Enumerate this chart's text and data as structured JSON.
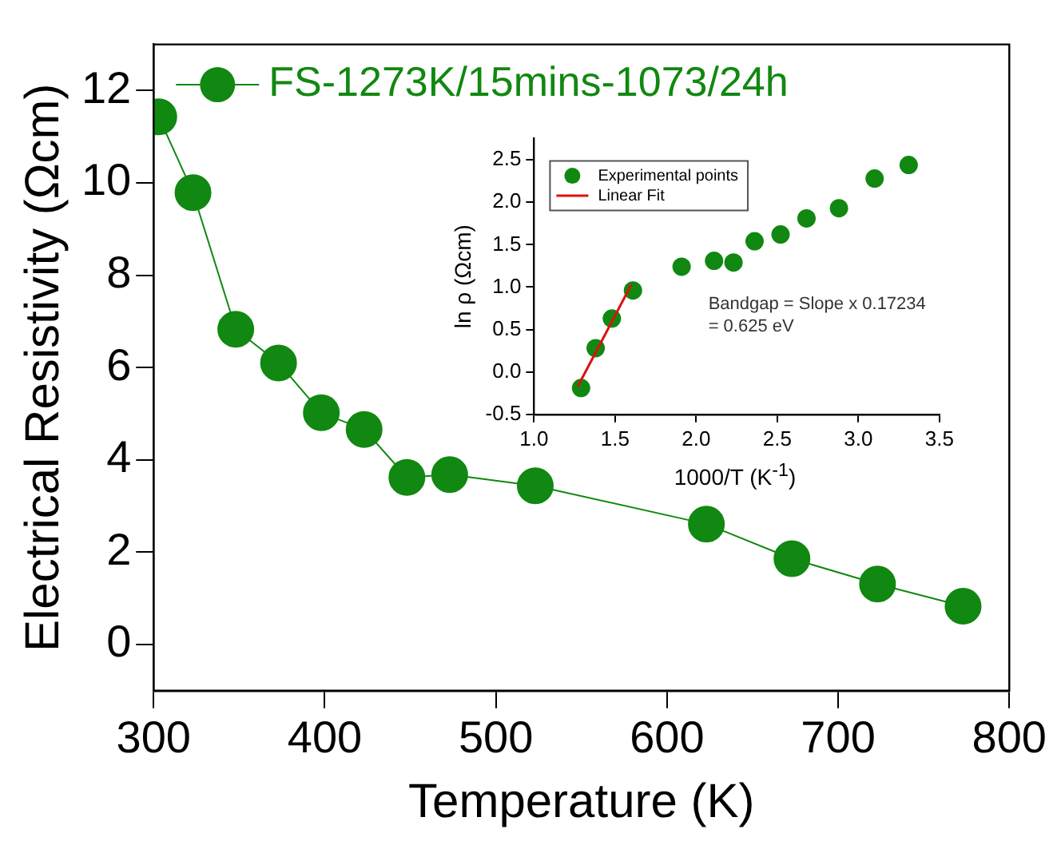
{
  "chart_data": [
    {
      "type": "line",
      "xlabel": "Temperature (K)",
      "ylabel": "Electrical Resistivity (Ωcm)",
      "x": [
        303,
        323,
        348,
        373,
        398,
        423,
        448,
        473,
        523,
        623,
        673,
        723,
        773
      ],
      "series": [
        {
          "name": "FS-1273K/15mins-1073/24h",
          "color": "#118811",
          "values": [
            11.43,
            9.79,
            6.83,
            6.1,
            5.02,
            4.66,
            3.62,
            3.68,
            3.44,
            2.61,
            1.86,
            1.31,
            0.83
          ]
        }
      ],
      "xlim": [
        300,
        800
      ],
      "xticks": [
        300,
        400,
        500,
        600,
        700,
        800
      ],
      "ylim": [
        -1,
        13
      ],
      "yticks": [
        0,
        2,
        4,
        6,
        8,
        10,
        12
      ],
      "marker": "circle",
      "legend": "top left"
    },
    {
      "type": "scatter",
      "xlabel": "1000/T (K$^{-1}$)",
      "ylabel": "ln ρ (Ωcm)",
      "series": [
        {
          "name": "Experimental points",
          "color": "#118811",
          "marker": "circle",
          "x": [
            1.29,
            1.38,
            1.48,
            1.61,
            1.91,
            2.11,
            2.23,
            2.36,
            2.52,
            2.68,
            2.88,
            3.1,
            3.31
          ],
          "values": [
            -0.19,
            0.28,
            0.63,
            0.96,
            1.24,
            1.31,
            1.29,
            1.54,
            1.62,
            1.81,
            1.93,
            2.28,
            2.44
          ]
        },
        {
          "name": "Linear Fit",
          "type": "line",
          "color": "#dd1111",
          "marker": "none",
          "x": [
            1.27,
            1.6
          ],
          "values": [
            -0.17,
            1.03
          ]
        }
      ],
      "xlim": [
        1.0,
        3.5
      ],
      "xticks": [
        {
          "value": 1,
          "label": "1.0"
        },
        1.5,
        {
          "value": 2,
          "label": "2.0"
        },
        2.5,
        {
          "value": 3,
          "label": "3.0"
        },
        3.5
      ],
      "ylim": [
        -0.5,
        2.75
      ],
      "yticks": [
        -0.5,
        {
          "value": 0,
          "label": "0.0"
        },
        0.5,
        {
          "value": 1,
          "label": "1.0"
        },
        1.5,
        {
          "value": 2,
          "label": "2.0"
        },
        2.5
      ],
      "legend": "top left",
      "annotations": [
        "Bandgap = Slope x 0.17234",
        "= 0.625 eV"
      ]
    }
  ]
}
